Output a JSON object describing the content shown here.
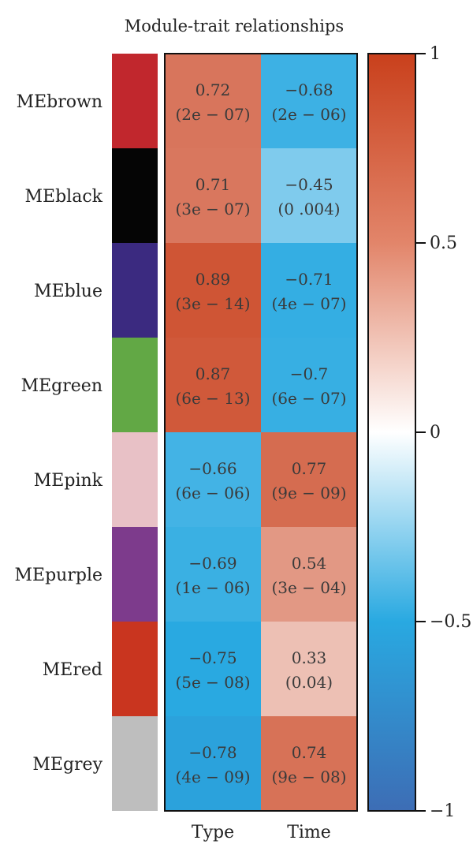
{
  "chart_data": {
    "type": "heatmap",
    "title": "Module-trait relationships",
    "columns": [
      "Type",
      "Time"
    ],
    "rows": [
      {
        "label": "MEbrown",
        "swatch": "#c1272d",
        "cells": [
          {
            "value": 0.72,
            "text": "0.72",
            "p": "(2e − 07)"
          },
          {
            "value": -0.68,
            "text": "−0.68",
            "p": "(2e − 06)"
          }
        ]
      },
      {
        "label": "MEblack",
        "swatch": "#050505",
        "cells": [
          {
            "value": 0.71,
            "text": "0.71",
            "p": "(3e − 07)"
          },
          {
            "value": -0.45,
            "text": "−0.45",
            "p": "(0 .004)"
          }
        ]
      },
      {
        "label": "MEblue",
        "swatch": "#3b2a80",
        "cells": [
          {
            "value": 0.89,
            "text": "0.89",
            "p": "(3e − 14)"
          },
          {
            "value": -0.71,
            "text": "−0.71",
            "p": "(4e − 07)"
          }
        ]
      },
      {
        "label": "MEgreen",
        "swatch": "#62a845",
        "cells": [
          {
            "value": 0.87,
            "text": "0.87",
            "p": "(6e − 13)"
          },
          {
            "value": -0.7,
            "text": "−0.7",
            "p": "(6e − 07)"
          }
        ]
      },
      {
        "label": "MEpink",
        "swatch": "#e8c1c6",
        "cells": [
          {
            "value": -0.66,
            "text": "−0.66",
            "p": "(6e − 06)"
          },
          {
            "value": 0.77,
            "text": "0.77",
            "p": "(9e − 09)"
          }
        ]
      },
      {
        "label": "MEpurple",
        "swatch": "#7d3b8c",
        "cells": [
          {
            "value": -0.69,
            "text": "−0.69",
            "p": "(1e − 06)"
          },
          {
            "value": 0.54,
            "text": "0.54",
            "p": "(3e − 04)"
          }
        ]
      },
      {
        "label": "MEred",
        "swatch": "#c9351f",
        "cells": [
          {
            "value": -0.75,
            "text": "−0.75",
            "p": "(5e − 08)"
          },
          {
            "value": 0.33,
            "text": "0.33",
            "p": "(0.04)"
          }
        ]
      },
      {
        "label": "MEgrey",
        "swatch": "#bebebe",
        "cells": [
          {
            "value": -0.78,
            "text": "−0.78",
            "p": "(4e − 09)"
          },
          {
            "value": 0.74,
            "text": "0.74",
            "p": "(9e − 08)"
          }
        ]
      }
    ],
    "colorbar": {
      "range": [
        -1,
        1
      ],
      "ticks": [
        {
          "value": 1,
          "label": "1"
        },
        {
          "value": 0.5,
          "label": "0.5"
        },
        {
          "value": 0,
          "label": "0"
        },
        {
          "value": -0.5,
          "label": "−0.5"
        },
        {
          "value": -1,
          "label": "−1"
        }
      ],
      "colors": {
        "low": "#3d6db5",
        "mid_low": "#29a9e1",
        "mid": "#ffffff",
        "high": "#c9401c"
      }
    }
  }
}
